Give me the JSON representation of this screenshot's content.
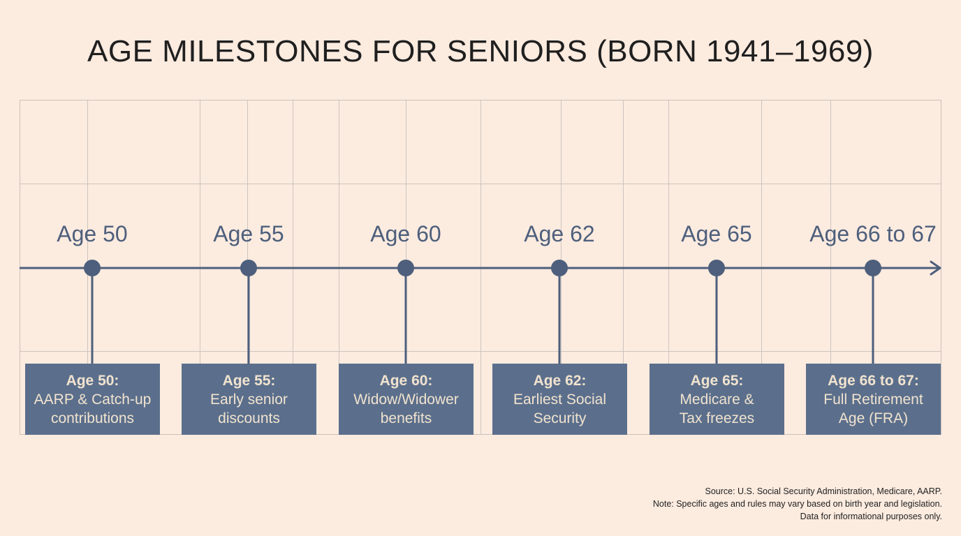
{
  "title": "AGE MILESTONES FOR SENIORS (BORN 1941–1969)",
  "milestones": [
    {
      "age_label": "Age 50",
      "heading": "Age 50:",
      "line1": "AARP & Catch-up",
      "line2": "contributions"
    },
    {
      "age_label": "Age 55",
      "heading": "Age 55:",
      "line1": "Early senior",
      "line2": "discounts"
    },
    {
      "age_label": "Age 60",
      "heading": "Age 60:",
      "line1": "Widow/Widower",
      "line2": "benefits"
    },
    {
      "age_label": "Age 62",
      "heading": "Age 62:",
      "line1": "Earliest Social",
      "line2": "Security"
    },
    {
      "age_label": "Age 65",
      "heading": "Age 65:",
      "line1": "Medicare &",
      "line2": "Tax freezes"
    },
    {
      "age_label": "Age 66 to 67",
      "heading": "Age 66 to 67:",
      "line1": "Full Retirement",
      "line2": "Age (FRA)"
    }
  ],
  "footer": {
    "source": "Source: U.S. Social Security Administration, Medicare, AARP.",
    "note": "Note: Specific ages and rules may vary based on birth year and legislation.",
    "disclaimer": "Data for informational purposes only."
  },
  "colors": {
    "background": "#fcebdf",
    "timeline": "#4d5f7c",
    "box_fill": "#5b6f8c",
    "box_text": "#f1e3cf"
  }
}
